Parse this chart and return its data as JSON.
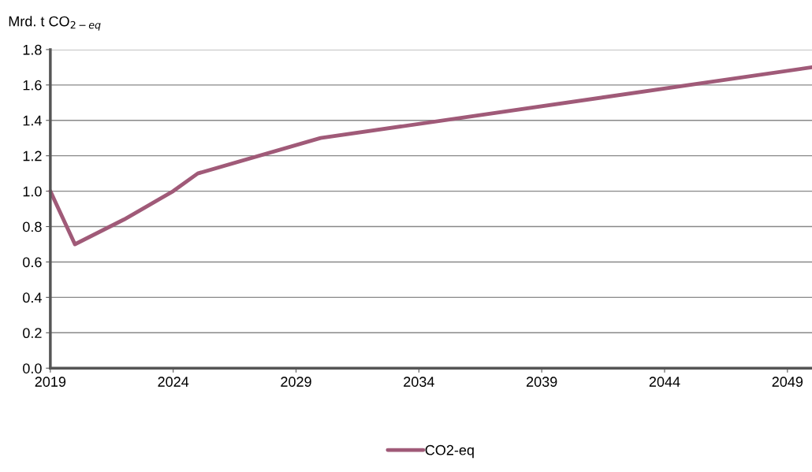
{
  "chart_data": {
    "type": "line",
    "ylabel": "Mrd. t CO$_{2−eq}$",
    "x": [
      2019,
      2020,
      2022,
      2023,
      2024,
      2025,
      2030,
      2050
    ],
    "series": [
      {
        "name": "CO2-eq",
        "color": "#a05a78",
        "values": [
          1.0,
          0.7,
          0.84,
          0.92,
          1.0,
          1.1,
          1.3,
          1.7
        ]
      }
    ],
    "xlim": [
      2019,
      2050
    ],
    "xticks": [
      2019,
      2024,
      2029,
      2034,
      2039,
      2044,
      2049
    ],
    "ylim": [
      0,
      1.8
    ],
    "yticks": [
      {
        "value": 0,
        "label": "0.0"
      },
      {
        "value": 0.2,
        "label": "0.2"
      },
      {
        "value": 0.4,
        "label": "0.4"
      },
      {
        "value": 0.6,
        "label": "0.6"
      },
      {
        "value": 0.8,
        "label": "0.8"
      },
      {
        "value": 1.0,
        "label": "1.0"
      },
      {
        "value": 1.2,
        "label": "1.2"
      },
      {
        "value": 1.4,
        "label": "1.4"
      },
      {
        "value": 1.6,
        "label": "1.6"
      },
      {
        "value": 1.8,
        "label": "1.8"
      }
    ],
    "grid": "y",
    "legend": "bottom",
    "marker": "none",
    "line_style": "solid"
  }
}
